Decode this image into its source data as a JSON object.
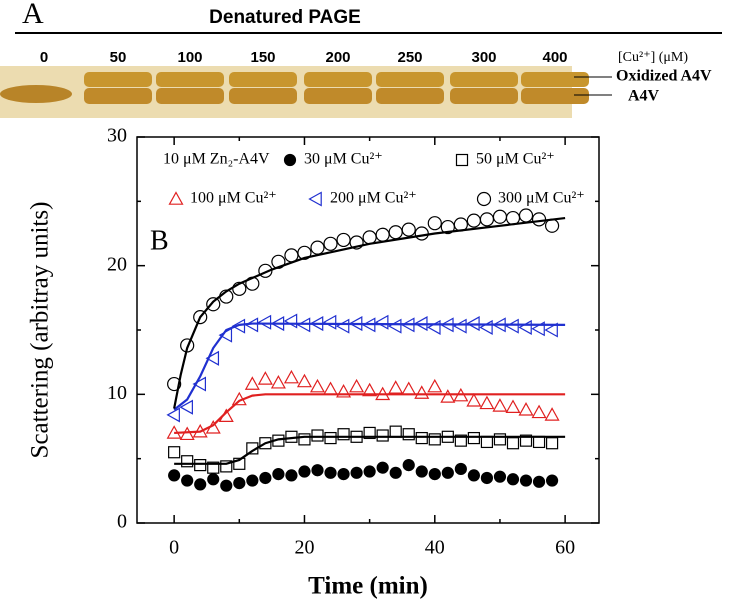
{
  "gel": {
    "label": "A",
    "title": "Denatured PAGE",
    "lanes": [
      "0",
      "50",
      "100",
      "150",
      "200",
      "250",
      "300",
      "400"
    ],
    "lane_axis_label": "[Cu²⁺] (μM)",
    "bands": [
      "Oxidized A4V",
      "A4V"
    ]
  },
  "chart_data": {
    "type": "scatter",
    "title": "B",
    "annotation": "10 μM Zn₂-A4V",
    "x_label": "Time (min)",
    "y_label": "Scattering (arbitray units)",
    "xlim": [
      -5.7,
      65.2
    ],
    "ylim": [
      0,
      30
    ],
    "xticks": [
      0,
      20,
      40,
      60
    ],
    "yticks": [
      0,
      10,
      20,
      30
    ],
    "xminor": [
      10,
      30,
      50
    ],
    "yminor": [
      5,
      15,
      25
    ],
    "x": [
      0,
      2,
      4,
      6,
      8,
      10,
      12,
      14,
      16,
      18,
      20,
      22,
      24,
      26,
      28,
      30,
      32,
      34,
      36,
      38,
      40,
      42,
      44,
      46,
      48,
      50,
      52,
      54,
      56,
      58
    ],
    "series": [
      {
        "name": "30 μM Cu²⁺",
        "color": "#000000",
        "marker": "filled-circle",
        "values": [
          3.7,
          3.3,
          3.0,
          3.4,
          2.9,
          3.1,
          3.3,
          3.5,
          3.8,
          3.7,
          4.0,
          4.1,
          3.9,
          3.8,
          3.9,
          4.0,
          4.3,
          3.9,
          4.5,
          4.0,
          3.8,
          3.9,
          4.2,
          3.7,
          3.5,
          3.6,
          3.4,
          3.3,
          3.2,
          3.3
        ]
      },
      {
        "name": "50 μM Cu²⁺",
        "color": "#000000",
        "marker": "square",
        "values": [
          5.5,
          4.8,
          4.5,
          4.3,
          4.4,
          4.6,
          5.8,
          6.2,
          6.4,
          6.7,
          6.5,
          6.8,
          6.6,
          6.9,
          6.7,
          7.0,
          6.8,
          7.1,
          6.9,
          6.6,
          6.5,
          6.7,
          6.4,
          6.6,
          6.3,
          6.5,
          6.2,
          6.4,
          6.3,
          6.2
        ],
        "fit": {
          "x": [
            0,
            8,
            10,
            12,
            14,
            16,
            20,
            60
          ],
          "values": [
            4.6,
            4.6,
            4.9,
            5.6,
            6.2,
            6.5,
            6.7,
            6.7
          ]
        }
      },
      {
        "name": "100 μM Cu²⁺",
        "color": "#e02020",
        "marker": "triangle",
        "values": [
          7.0,
          6.9,
          7.1,
          7.4,
          8.3,
          9.6,
          10.8,
          11.2,
          10.9,
          11.3,
          11.0,
          10.6,
          10.4,
          10.2,
          10.6,
          10.3,
          10.0,
          10.5,
          10.4,
          10.1,
          10.6,
          9.8,
          9.9,
          9.5,
          9.3,
          9.1,
          9.0,
          8.8,
          8.6,
          8.4
        ],
        "fit": {
          "x": [
            0,
            4,
            6,
            8,
            10,
            12,
            14,
            60
          ],
          "values": [
            7.0,
            7.1,
            7.6,
            8.6,
            9.5,
            9.9,
            10.0,
            10.0
          ]
        }
      },
      {
        "name": "200 μM Cu²⁺",
        "color": "#2030d0",
        "marker": "left-triangle",
        "values": [
          8.4,
          9.0,
          10.8,
          12.8,
          14.6,
          15.3,
          15.4,
          15.6,
          15.5,
          15.7,
          15.4,
          15.5,
          15.6,
          15.3,
          15.5,
          15.4,
          15.6,
          15.3,
          15.4,
          15.5,
          15.2,
          15.4,
          15.3,
          15.5,
          15.2,
          15.4,
          15.3,
          15.2,
          15.1,
          15.0
        ],
        "fit": {
          "x": [
            0,
            2,
            4,
            6,
            8,
            10,
            12,
            60
          ],
          "values": [
            8.8,
            9.6,
            11.4,
            13.6,
            15.0,
            15.4,
            15.5,
            15.4
          ]
        }
      },
      {
        "name": "300 μM Cu²⁺",
        "color": "#000000",
        "marker": "circle",
        "values": [
          10.8,
          13.8,
          16.0,
          17.0,
          17.6,
          18.2,
          18.6,
          19.6,
          20.3,
          20.8,
          21.0,
          21.4,
          21.7,
          22.0,
          21.8,
          22.2,
          22.4,
          22.6,
          22.8,
          22.5,
          23.3,
          23.0,
          23.2,
          23.5,
          23.6,
          23.8,
          23.7,
          23.9,
          23.6,
          23.1
        ],
        "fit": {
          "x": [
            0,
            1,
            2,
            4,
            6,
            8,
            10,
            15,
            20,
            30,
            40,
            50,
            60
          ],
          "values": [
            8.9,
            11.5,
            13.6,
            16.0,
            17.2,
            18.0,
            18.6,
            19.7,
            20.6,
            21.7,
            22.5,
            23.1,
            23.7
          ]
        }
      }
    ]
  }
}
